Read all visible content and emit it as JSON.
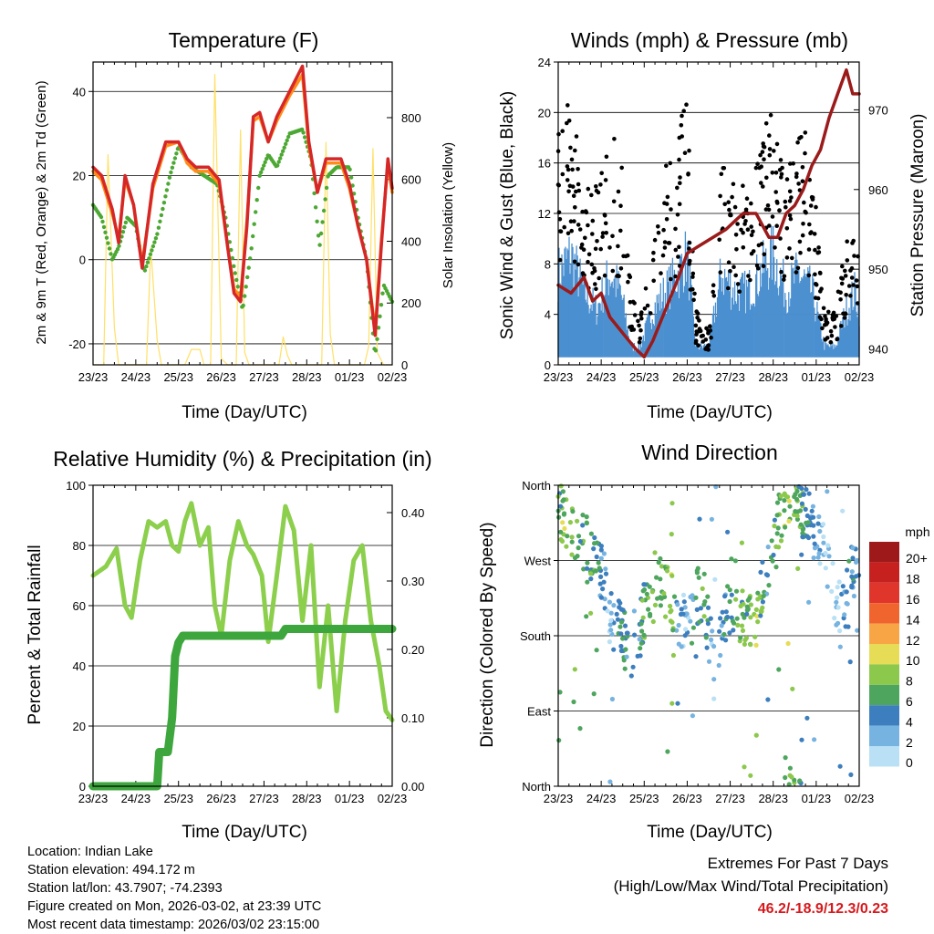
{
  "colors": {
    "temp2m": "#d62728",
    "temp9m": "#ff8c1a",
    "dewpoint": "#4ca833",
    "solar": "#ffe066",
    "gust": "#000000",
    "wind": "#4a8fd0",
    "pressure": "#9b1b1b",
    "rh": "#8ccf4d",
    "precip": "#3da63d",
    "extremes_text": "#d7191c"
  },
  "panels": {
    "temperature": {
      "title": "Temperature (F)",
      "ylabel": "2m & 9m T (Red, Orange) & 2m Td (Green)",
      "y2label": "Solar Insolation (Yellow)",
      "xlabel": "Time (Day/UTC)"
    },
    "winds": {
      "title": "Winds (mph) & Pressure (mb)",
      "ylabel": "Sonic Wind & Gust (Blue, Black)",
      "y2label": "Station Pressure (Maroon)",
      "xlabel": "Time (Day/UTC)"
    },
    "rh": {
      "title": "Relative Humidity (%) & Precipitation (in)",
      "ylabel": "Percent & Total Rainfall",
      "xlabel": "Time (Day/UTC)"
    },
    "direction": {
      "title": "Wind Direction",
      "ylabel": "Direction (Colored By Speed)",
      "xlabel": "Time (Day/UTC)",
      "colorbar_title": "mph",
      "colorbar_labels": [
        "20+",
        "18",
        "16",
        "14",
        "12",
        "10",
        "8",
        "6",
        "4",
        "2",
        "0"
      ],
      "colorbar_colors": [
        "#9e1a1a",
        "#c6211f",
        "#e0352b",
        "#f0642e",
        "#f7a545",
        "#e6dc55",
        "#8cc84c",
        "#4ea65e",
        "#3d7fbe",
        "#76b3e0",
        "#b9e0f4"
      ]
    }
  },
  "info": {
    "location": "Location: Indian Lake",
    "elevation": "Station elevation: 494.172 m",
    "latlon": "Station lat/lon: 43.7907; -74.2393",
    "created": "Figure created on Mon, 2026-03-02, at 23:39 UTC",
    "recent": "Most recent data timestamp: 2026/03/02 23:15:00"
  },
  "extremes": {
    "title": "Extremes For Past 7 Days",
    "subtitle": "(High/Low/Max Wind/Total Precipitation)",
    "values": "46.2/-18.9/12.3/0.23"
  },
  "chart_data": [
    {
      "type": "line",
      "id": "temperature",
      "title": "Temperature (F)",
      "xlabel": "Time (Day/UTC)",
      "ylabel": "2m & 9m T (Red, Orange) & 2m Td (Green)",
      "y2label": "Solar Insolation (Yellow)",
      "x_ticks": [
        "23/23",
        "24/23",
        "25/23",
        "26/23",
        "27/23",
        "28/23",
        "01/23",
        "02/23"
      ],
      "xlim": [
        0,
        7
      ],
      "ylim": [
        -25,
        47
      ],
      "y_ticks": [
        -20,
        0,
        20,
        40
      ],
      "y2lim": [
        0,
        980
      ],
      "y2_ticks": [
        0,
        200,
        400,
        600,
        800
      ],
      "series": [
        {
          "name": "2m T",
          "color": "#d62728",
          "axis": "y",
          "x": [
            0,
            0.2,
            0.45,
            0.6,
            0.75,
            0.95,
            1.15,
            1.4,
            1.7,
            2.0,
            2.2,
            2.4,
            2.7,
            2.95,
            3.15,
            3.3,
            3.45,
            3.6,
            3.75,
            3.9,
            4.1,
            4.3,
            4.6,
            4.9,
            5.05,
            5.25,
            5.45,
            5.6,
            5.8,
            6.0,
            6.2,
            6.4,
            6.6,
            6.75,
            6.9,
            7.0
          ],
          "y": [
            22,
            20,
            12,
            4,
            20,
            13,
            -2,
            18,
            28,
            28,
            24,
            22,
            22,
            19,
            3,
            -8,
            -10,
            8,
            34,
            35,
            28,
            34,
            40,
            46,
            28,
            16,
            24,
            24,
            24,
            18,
            8,
            0,
            -18,
            4,
            24,
            17
          ]
        },
        {
          "name": "9m T",
          "color": "#ff8c1a",
          "axis": "y",
          "x": [
            0,
            0.2,
            0.45,
            0.6,
            0.75,
            0.95,
            1.15,
            1.4,
            1.7,
            2.0,
            2.2,
            2.4,
            2.7,
            2.95,
            3.15,
            3.3,
            3.45,
            3.6,
            3.75,
            3.9,
            4.1,
            4.3,
            4.6,
            4.9,
            5.05,
            5.25,
            5.45,
            5.6,
            5.8,
            6.0,
            6.2,
            6.4,
            6.6,
            6.75,
            6.9,
            7.0
          ],
          "y": [
            21,
            19,
            11,
            5,
            19,
            13,
            -1,
            17,
            27,
            28,
            23,
            21,
            21,
            18,
            3,
            -7,
            -9,
            9,
            33,
            34,
            28,
            33,
            39,
            44,
            27,
            16,
            23,
            23,
            23,
            17,
            8,
            0,
            -17,
            5,
            23,
            16
          ]
        },
        {
          "name": "2m Td",
          "color": "#4ca833",
          "axis": "y",
          "x": [
            0,
            0.2,
            0.45,
            0.6,
            0.8,
            1.0,
            1.2,
            1.5,
            1.8,
            2.0,
            2.3,
            2.6,
            2.9,
            3.1,
            3.3,
            3.5,
            3.7,
            3.9,
            4.1,
            4.3,
            4.6,
            4.9,
            5.1,
            5.3,
            5.5,
            5.7,
            6.0,
            6.2,
            6.4,
            6.6,
            6.8,
            7.0
          ],
          "y": [
            13,
            10,
            0,
            3,
            10,
            8,
            -3,
            6,
            20,
            27,
            22,
            20,
            18,
            10,
            -2,
            -12,
            2,
            20,
            25,
            22,
            30,
            31,
            24,
            3,
            20,
            22,
            22,
            10,
            0,
            -23,
            -6,
            -10
          ]
        },
        {
          "name": "Solar Insolation",
          "color": "#ffe066",
          "axis": "y2",
          "x": [
            0,
            0.25,
            0.35,
            0.5,
            0.6,
            0.75,
            1.25,
            1.35,
            1.5,
            1.6,
            1.75,
            2.15,
            2.3,
            2.5,
            2.6,
            2.75,
            2.85,
            3.0,
            3.15,
            3.35,
            3.45,
            3.55,
            3.65,
            4.35,
            4.45,
            4.55,
            4.65,
            5.35,
            5.45,
            5.55,
            5.65,
            6.35,
            6.45,
            6.55,
            6.65,
            6.8,
            7.0
          ],
          "y": [
            0,
            0,
            680,
            120,
            0,
            0,
            0,
            380,
            80,
            0,
            0,
            0,
            50,
            50,
            0,
            0,
            940,
            20,
            0,
            0,
            760,
            40,
            0,
            0,
            90,
            30,
            0,
            0,
            720,
            100,
            0,
            0,
            60,
            700,
            40,
            0,
            0
          ]
        }
      ]
    },
    {
      "type": "scatter",
      "id": "winds",
      "title": "Winds (mph) & Pressure (mb)",
      "xlabel": "Time (Day/UTC)",
      "ylabel": "Sonic Wind & Gust (Blue, Black)",
      "y2label": "Station Pressure (Maroon)",
      "x_ticks": [
        "23/23",
        "24/23",
        "25/23",
        "26/23",
        "27/23",
        "28/23",
        "01/23",
        "02/23"
      ],
      "xlim": [
        0,
        7
      ],
      "ylim": [
        0,
        24
      ],
      "y_ticks": [
        0,
        4,
        8,
        12,
        16,
        20,
        24
      ],
      "y2lim": [
        938,
        976
      ],
      "y2_ticks": [
        940,
        950,
        960,
        970
      ],
      "series": [
        {
          "name": "Gust",
          "color": "#000000",
          "axis": "y",
          "x": [
            0,
            0.3,
            0.6,
            0.9,
            1.2,
            1.45,
            1.7,
            1.9,
            2.2,
            2.5,
            2.8,
            3.0,
            3.2,
            3.5,
            3.8,
            4.1,
            4.4,
            4.7,
            5.0,
            5.3,
            5.6,
            5.9,
            6.2,
            6.45,
            6.7,
            6.9,
            7.0
          ],
          "y": [
            14,
            15,
            11,
            10,
            13,
            12,
            4,
            3,
            8,
            11,
            13,
            15,
            3,
            2,
            12,
            10,
            10,
            13,
            14,
            10,
            14,
            12,
            3,
            3,
            7,
            9,
            8
          ]
        },
        {
          "name": "Sonic Wind",
          "color": "#4a8fd0",
          "axis": "y",
          "x": [
            0,
            0.3,
            0.6,
            0.9,
            1.2,
            1.45,
            1.7,
            1.9,
            2.2,
            2.5,
            2.8,
            3.0,
            3.2,
            3.5,
            3.8,
            4.1,
            4.4,
            4.7,
            5.0,
            5.3,
            5.6,
            5.9,
            6.2,
            6.45,
            6.7,
            6.9,
            7.0
          ],
          "y": [
            5,
            6,
            4,
            3,
            5,
            4,
            1,
            1,
            3,
            4,
            5,
            6,
            1,
            1,
            5,
            4,
            4,
            5,
            6,
            4,
            5,
            4,
            1,
            1,
            3,
            4,
            3
          ]
        },
        {
          "name": "Station Pressure",
          "color": "#9b1b1b",
          "axis": "y2",
          "x": [
            0,
            0.3,
            0.6,
            0.8,
            1.0,
            1.2,
            1.5,
            1.8,
            2.0,
            2.2,
            2.5,
            2.8,
            3.0,
            3.3,
            3.6,
            3.9,
            4.1,
            4.3,
            4.6,
            4.9,
            5.1,
            5.3,
            5.5,
            5.7,
            5.9,
            6.1,
            6.3,
            6.5,
            6.7,
            6.85,
            7.0
          ],
          "y": [
            948,
            947,
            949,
            946,
            947,
            944,
            942,
            940,
            939,
            941,
            945,
            949,
            952,
            953,
            954,
            955,
            956,
            957,
            957,
            954,
            954,
            957,
            958,
            960,
            963,
            965,
            969,
            972,
            975,
            972,
            972
          ]
        }
      ]
    },
    {
      "type": "line",
      "id": "rh",
      "title": "Relative Humidity (%) & Precipitation (in)",
      "xlabel": "Time (Day/UTC)",
      "ylabel": "Percent & Total Rainfall",
      "x_ticks": [
        "23/23",
        "24/23",
        "25/23",
        "26/23",
        "27/23",
        "28/23",
        "01/23",
        "02/23"
      ],
      "xlim": [
        0,
        7
      ],
      "ylim": [
        0,
        100
      ],
      "y_ticks": [
        0,
        20,
        40,
        60,
        80,
        100
      ],
      "y2lim": [
        0,
        0.44
      ],
      "y2_ticks": [
        0.0,
        0.1,
        0.2,
        0.3,
        0.4
      ],
      "series": [
        {
          "name": "Relative Humidity",
          "color": "#8ccf4d",
          "axis": "y",
          "x": [
            0,
            0.3,
            0.55,
            0.75,
            0.9,
            1.1,
            1.3,
            1.5,
            1.7,
            1.85,
            2.0,
            2.15,
            2.3,
            2.5,
            2.7,
            2.85,
            3.0,
            3.2,
            3.4,
            3.6,
            3.75,
            3.95,
            4.1,
            4.3,
            4.5,
            4.7,
            4.9,
            5.1,
            5.3,
            5.5,
            5.7,
            5.9,
            6.1,
            6.3,
            6.5,
            6.7,
            6.85,
            7.0
          ],
          "y": [
            70,
            73,
            79,
            60,
            56,
            75,
            88,
            86,
            88,
            80,
            78,
            88,
            94,
            80,
            86,
            60,
            50,
            75,
            88,
            80,
            77,
            70,
            48,
            70,
            93,
            85,
            55,
            80,
            33,
            60,
            25,
            55,
            75,
            80,
            55,
            40,
            25,
            22
          ]
        },
        {
          "name": "Total Precipitation",
          "color": "#3da63d",
          "axis": "y2",
          "x": [
            0,
            1.5,
            1.55,
            1.75,
            1.85,
            1.92,
            2.0,
            2.1,
            2.2,
            4.4,
            4.5,
            7.0
          ],
          "y": [
            0,
            0,
            0.05,
            0.05,
            0.1,
            0.19,
            0.21,
            0.22,
            0.22,
            0.22,
            0.23,
            0.23
          ]
        }
      ]
    },
    {
      "type": "scatter",
      "id": "direction",
      "title": "Wind Direction",
      "xlabel": "Time (Day/UTC)",
      "ylabel": "Direction (Colored By Speed)",
      "x_ticks": [
        "23/23",
        "24/23",
        "25/23",
        "26/23",
        "27/23",
        "28/23",
        "01/23",
        "02/23"
      ],
      "xlim": [
        0,
        7
      ],
      "ylim": [
        0,
        360
      ],
      "y_ticks": [
        "North",
        "East",
        "South",
        "West",
        "North"
      ],
      "colorbar": {
        "title": "mph",
        "labels": [
          "20+",
          "18",
          "16",
          "14",
          "12",
          "10",
          "8",
          "6",
          "4",
          "2",
          "0"
        ]
      },
      "series": [
        {
          "name": "Direction",
          "x": [
            0,
            0.15,
            0.3,
            0.5,
            0.7,
            0.9,
            1.05,
            1.2,
            1.4,
            1.6,
            1.8,
            2.0,
            2.2,
            2.4,
            2.6,
            2.8,
            3.0,
            3.2,
            3.4,
            3.6,
            3.8,
            4.0,
            4.2,
            4.4,
            4.6,
            4.8,
            5.0,
            5.2,
            5.4,
            5.6,
            5.8,
            6.0,
            6.2,
            6.4,
            6.6,
            6.8,
            7.0
          ],
          "y": [
            330,
            320,
            310,
            300,
            285,
            270,
            250,
            200,
            190,
            170,
            160,
            210,
            220,
            240,
            230,
            200,
            190,
            230,
            225,
            150,
            190,
            220,
            210,
            190,
            200,
            250,
            280,
            330,
            350,
            340,
            320,
            300,
            280,
            240,
            200,
            260,
            250
          ],
          "speed": [
            6,
            8,
            7,
            6,
            6,
            5,
            3,
            2,
            4,
            5,
            3,
            6,
            8,
            7,
            9,
            3,
            2,
            5,
            6,
            1,
            3,
            5,
            7,
            6,
            9,
            4,
            5,
            7,
            8,
            6,
            4,
            3,
            1,
            1,
            2,
            4,
            3
          ]
        }
      ]
    }
  ]
}
